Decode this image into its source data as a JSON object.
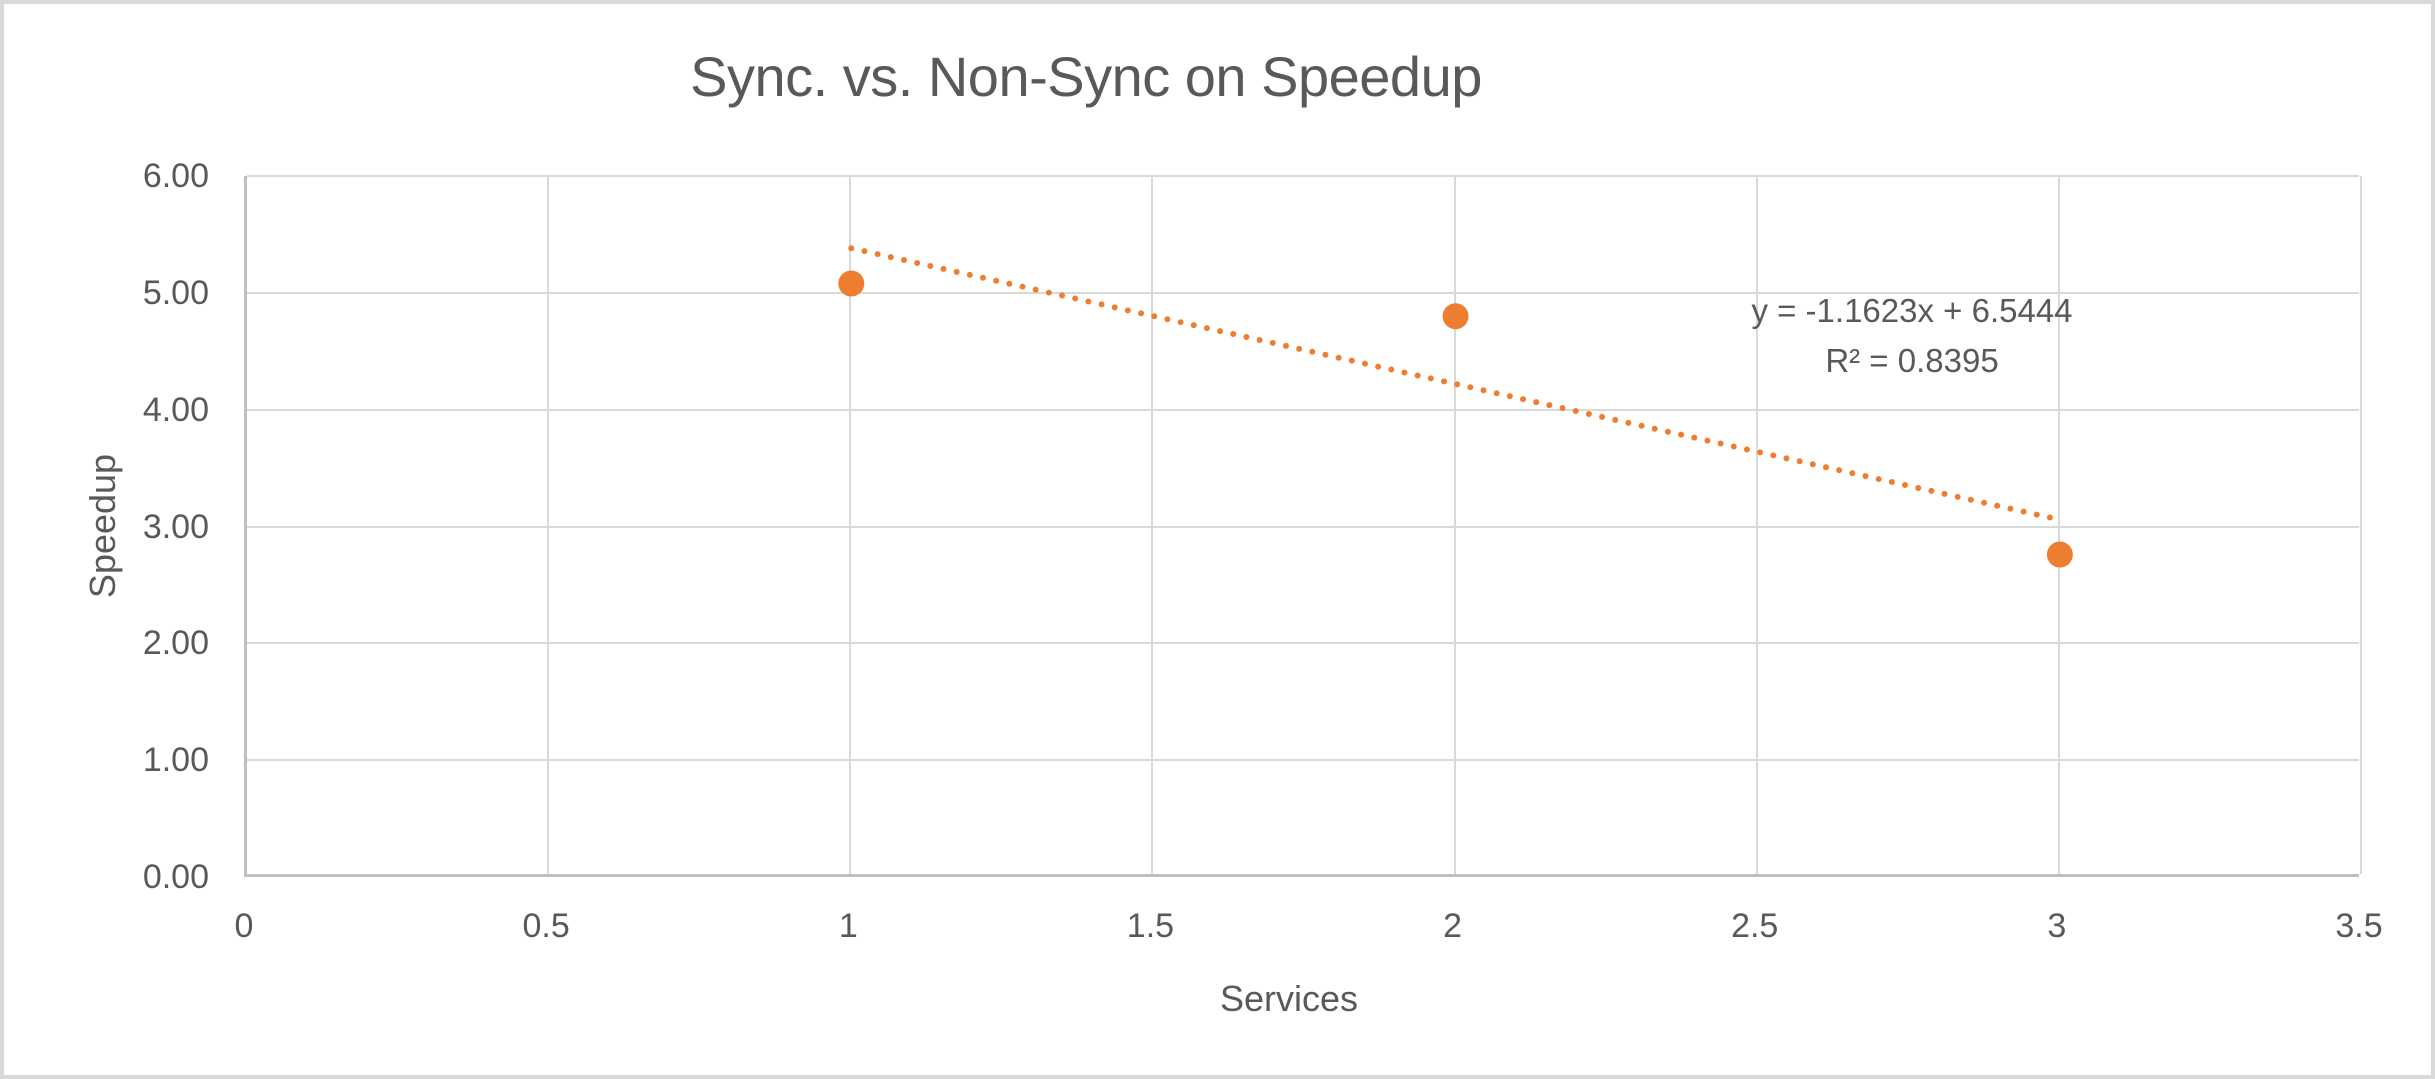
{
  "window": {
    "background": "#FFFFFF",
    "border_color": "#D9D9D9"
  },
  "chart_data": {
    "type": "scatter",
    "title": "Sync. vs. Non-Sync on Speedup",
    "xlabel": "Services",
    "ylabel": "Speedup",
    "xlim": [
      0,
      3.5
    ],
    "ylim": [
      0,
      6
    ],
    "grid": true,
    "legend": "none",
    "x_ticks": [
      0,
      0.5,
      1,
      1.5,
      2,
      2.5,
      3,
      3.5
    ],
    "x_tick_labels": [
      "0",
      "0.5",
      "1",
      "1.5",
      "2",
      "2.5",
      "3",
      "3.5"
    ],
    "y_ticks": [
      0,
      1,
      2,
      3,
      4,
      5,
      6
    ],
    "y_tick_labels": [
      "0.00",
      "1.00",
      "2.00",
      "3.00",
      "4.00",
      "5.00",
      "6.00"
    ],
    "series": [
      {
        "name": "Speedup",
        "x": [
          1,
          2,
          3
        ],
        "y": [
          5.08,
          4.8,
          2.76
        ],
        "marker": "circle",
        "marker_color": "#ED7D31",
        "marker_radius_px": 13
      }
    ],
    "trendline": {
      "style": "dotted",
      "color": "#ED7D31",
      "slope": -1.1623,
      "intercept": 6.5444,
      "x_range": [
        1,
        3
      ],
      "equation_label": "y = -1.1623x + 6.5444",
      "r_squared_label": "R² = 0.8395"
    },
    "colors": {
      "grid": "#D9D9D9",
      "axis": "#BFBFBF",
      "text": "#595959",
      "accent": "#ED7D31"
    }
  }
}
